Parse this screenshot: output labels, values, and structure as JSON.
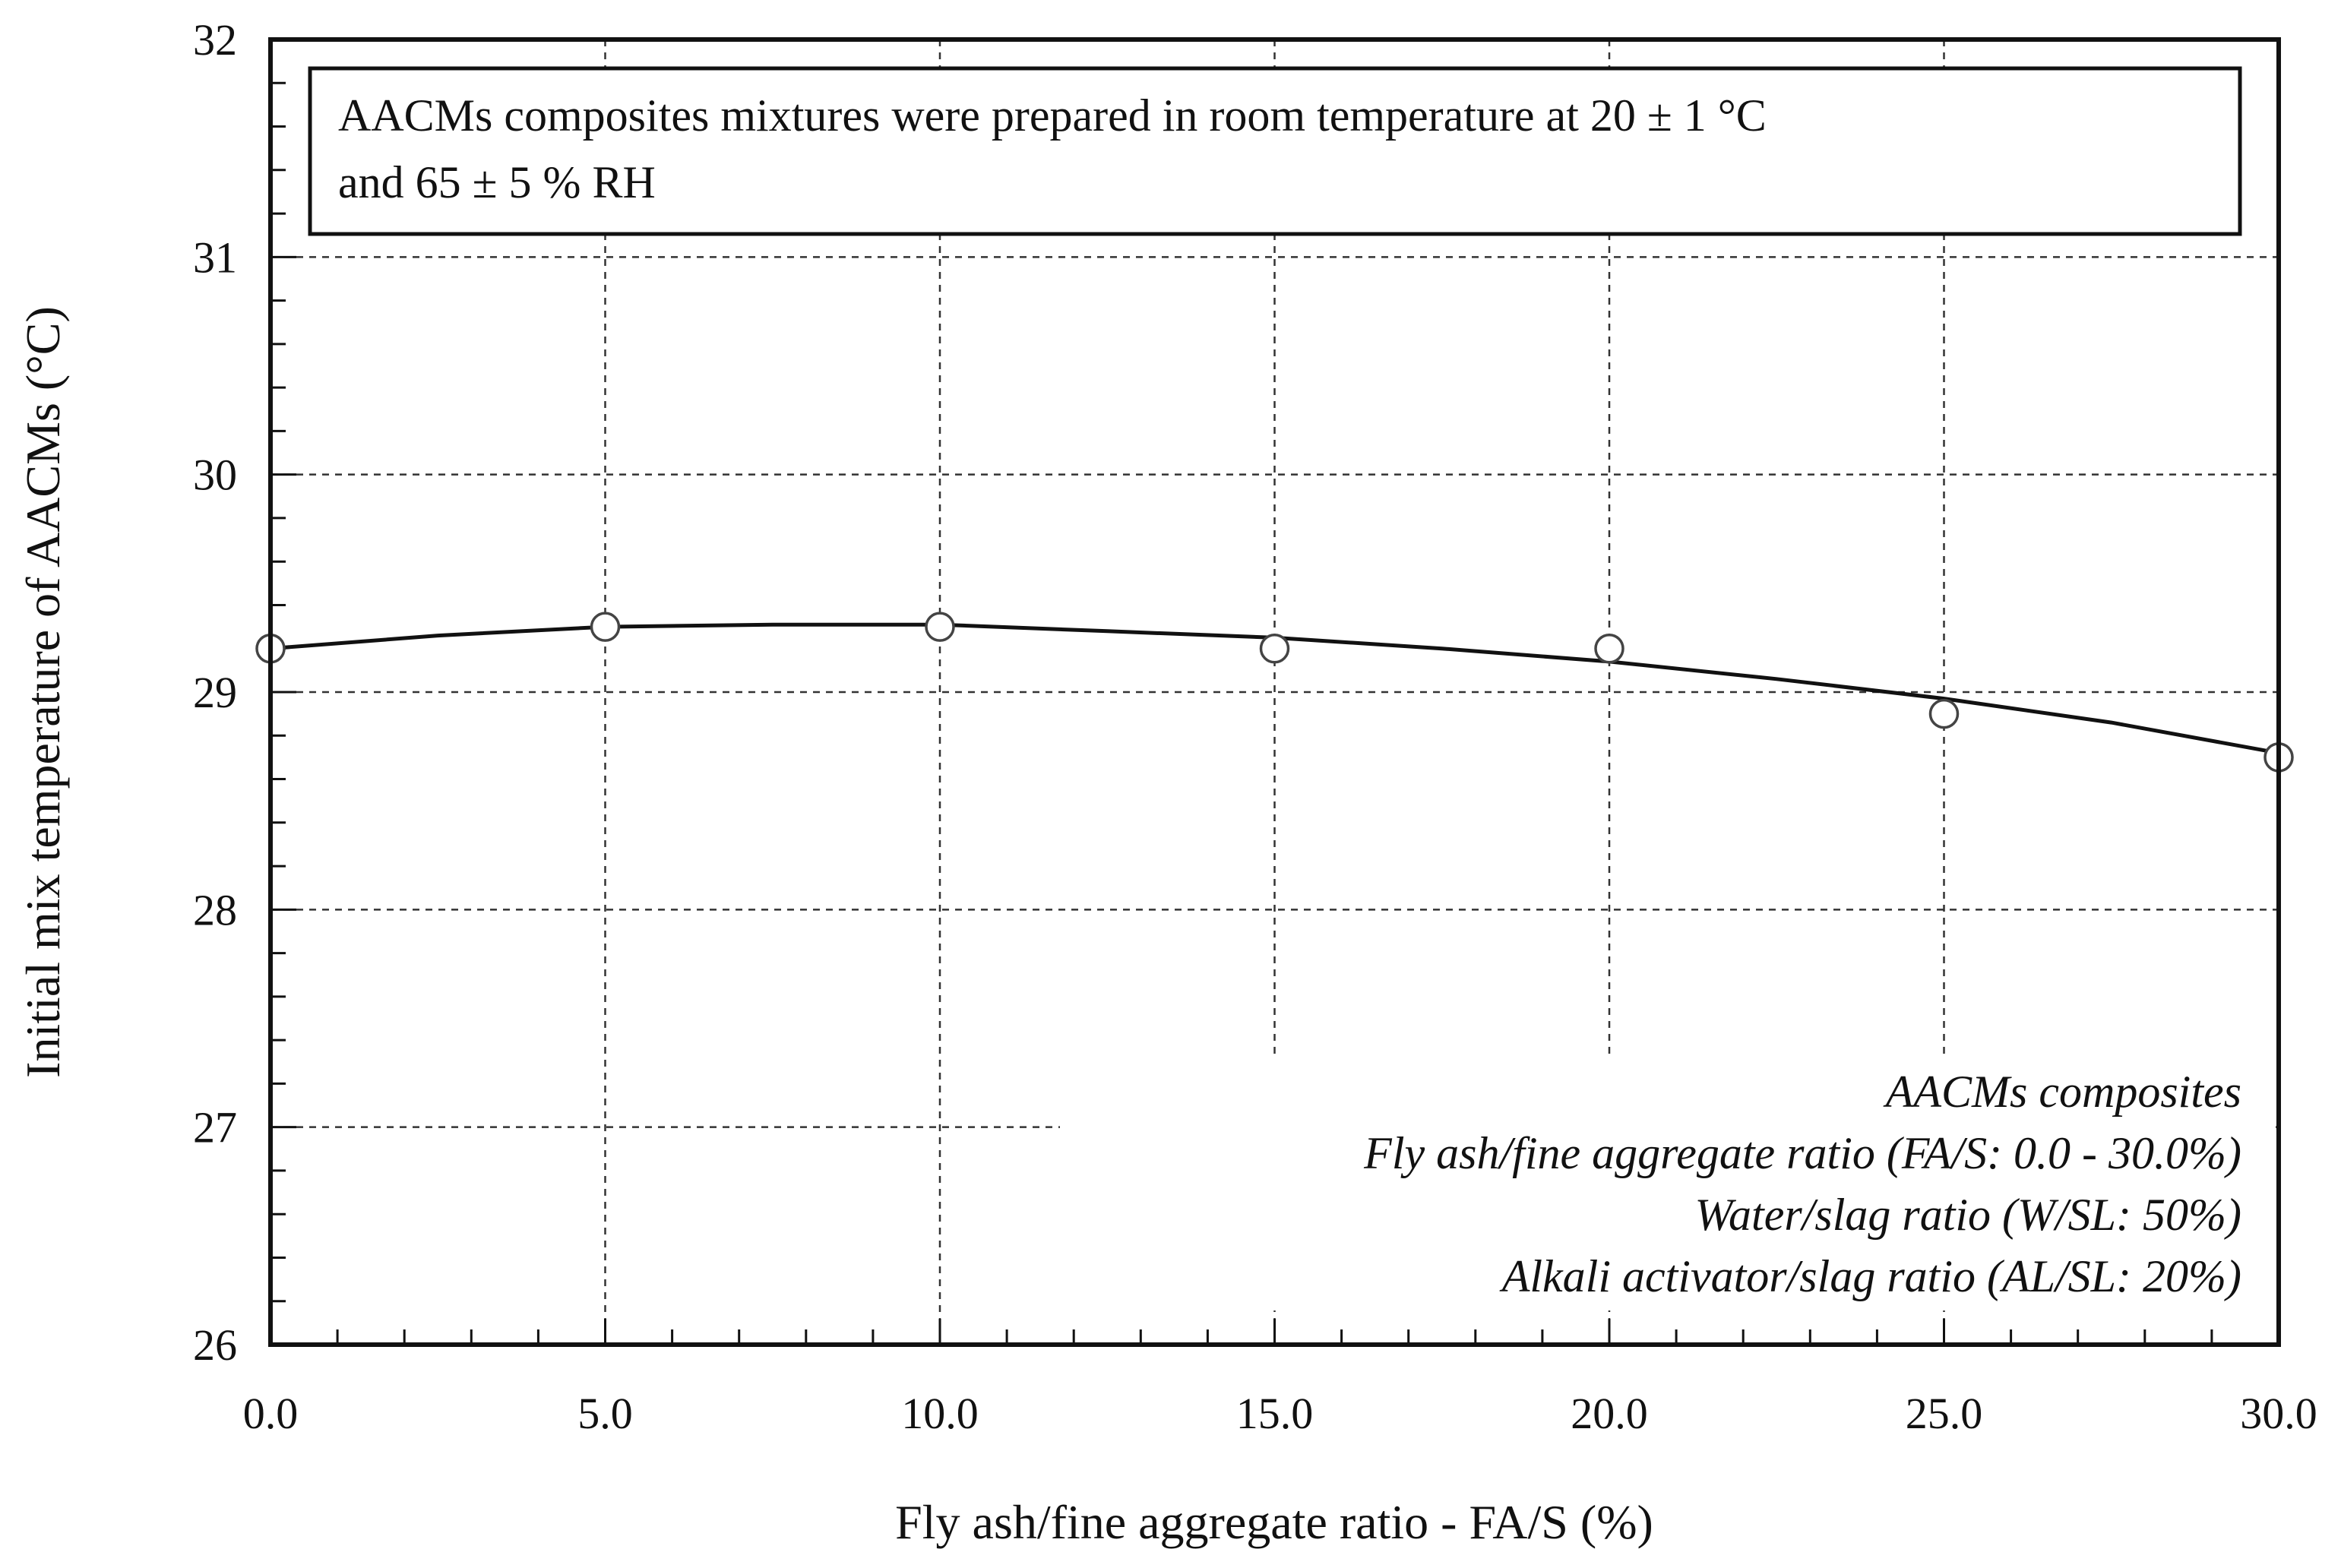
{
  "chart_data": {
    "type": "scatter",
    "title": "",
    "xlabel": "Fly ash/fine aggregate ratio - FA/S (%)",
    "ylabel": "Initial mix temperature of AACMs (°C)",
    "xlim": [
      0,
      30
    ],
    "ylim": [
      26,
      32
    ],
    "x_ticks": [
      "0.0",
      "5.0",
      "10.0",
      "15.0",
      "20.0",
      "25.0",
      "30.0"
    ],
    "y_ticks": [
      "26",
      "27",
      "28",
      "29",
      "30",
      "31",
      "32"
    ],
    "x_minor_step": 1,
    "y_minor_step": 0.2,
    "grid": true,
    "series": [
      {
        "name": "AACMs composites",
        "marker": "open-circle",
        "x": [
          0,
          5,
          10,
          15,
          20,
          25,
          30
        ],
        "y": [
          29.2,
          29.3,
          29.3,
          29.2,
          29.2,
          28.9,
          28.7
        ]
      }
    ],
    "fit_curve": {
      "type": "polynomial-2",
      "x": [
        0,
        2.5,
        5,
        7.5,
        10,
        12.5,
        15,
        17.5,
        20,
        22.5,
        25,
        27.5,
        30
      ],
      "y": [
        29.2,
        29.26,
        29.3,
        29.31,
        29.31,
        29.28,
        29.25,
        29.2,
        29.14,
        29.06,
        28.97,
        28.86,
        28.72
      ]
    },
    "annotation": {
      "lines": [
        "AACMs  composites mixtures were prepared  in room temperature at 20 ± 1 °C",
        "and 65 ± 5 % RH"
      ],
      "position": "top-left"
    },
    "legend": {
      "position": "bottom-right",
      "lines": [
        "AACMs  composites",
        "Fly ash/fine aggregate ratio (FA/S:  0.0 - 30.0%)",
        "Water/slag ratio (W/SL:  50%)",
        "Alkali activator/slag ratio (AL/SL:  20%)"
      ]
    },
    "colors": {
      "axis": "#111111",
      "grid": "#333333",
      "marker_stroke": "#444444",
      "curve": "#111111"
    }
  }
}
